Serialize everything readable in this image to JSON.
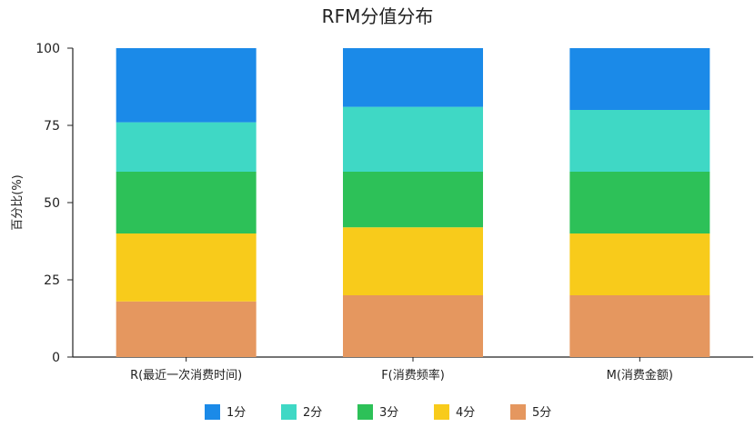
{
  "chart_data": {
    "type": "bar",
    "stacked": true,
    "title": "RFM分值分布",
    "xlabel": "",
    "ylabel": "百分比(%)",
    "ylim": [
      0,
      100
    ],
    "yticks": [
      "0",
      "25",
      "50",
      "75",
      "100"
    ],
    "grid": false,
    "legend_position": "bottom",
    "categories": [
      "R(最近一次消费时间)",
      "F(消费频率)",
      "M(消费金额)"
    ],
    "series": [
      {
        "name": "5分",
        "color": "#E5975F",
        "values": [
          18,
          20,
          20
        ]
      },
      {
        "name": "4分",
        "color": "#F8CB1B",
        "values": [
          22,
          22,
          20
        ]
      },
      {
        "name": "3分",
        "color": "#2DC158",
        "values": [
          20,
          18,
          20
        ]
      },
      {
        "name": "2分",
        "color": "#3FD8C5",
        "values": [
          16,
          21,
          20
        ]
      },
      {
        "name": "1分",
        "color": "#1B8AE8",
        "values": [
          24,
          19,
          20
        ]
      }
    ],
    "legend_order": [
      "1分",
      "2分",
      "3分",
      "4分",
      "5分"
    ]
  }
}
